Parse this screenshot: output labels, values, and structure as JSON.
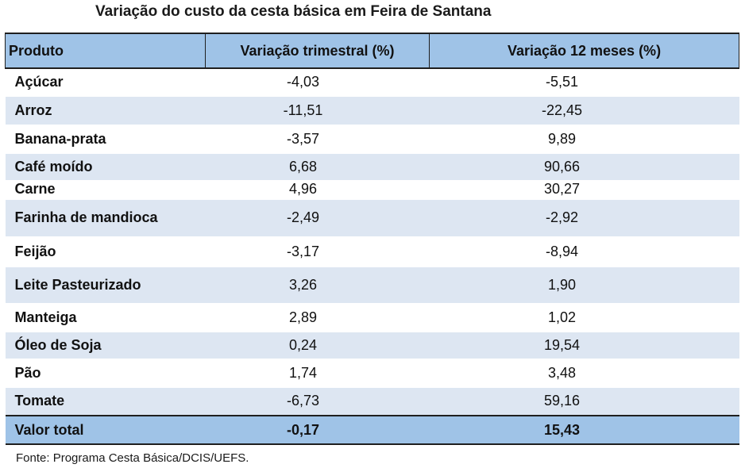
{
  "title": "Variação do custo da cesta básica em Feira de Santana",
  "header": {
    "col1": "Produto",
    "col2": "Variação trimestral (%)",
    "col3": "Variação 12 meses (%)"
  },
  "rows": [
    {
      "produto": "Açúcar",
      "trimestral": "-4,03",
      "doze_meses": "-5,51"
    },
    {
      "produto": "Arroz",
      "trimestral": "-11,51",
      "doze_meses": "-22,45"
    },
    {
      "produto": "Banana-prata",
      "trimestral": "-3,57",
      "doze_meses": "9,89"
    },
    {
      "produto": "Café moído",
      "trimestral": "6,68",
      "doze_meses": "90,66"
    },
    {
      "produto": "Carne",
      "trimestral": "4,96",
      "doze_meses": "30,27"
    },
    {
      "produto": "Farinha de mandioca",
      "trimestral": "-2,49",
      "doze_meses": "-2,92"
    },
    {
      "produto": "Feijão",
      "trimestral": "-3,17",
      "doze_meses": "-8,94"
    },
    {
      "produto": "Leite Pasteurizado",
      "trimestral": "3,26",
      "doze_meses": "1,90"
    },
    {
      "produto": "Manteiga",
      "trimestral": "2,89",
      "doze_meses": "1,02"
    },
    {
      "produto": "Óleo de Soja",
      "trimestral": "0,24",
      "doze_meses": "19,54"
    },
    {
      "produto": "Pão",
      "trimestral": "1,74",
      "doze_meses": "3,48"
    },
    {
      "produto": "Tomate",
      "trimestral": "-6,73",
      "doze_meses": "59,16"
    }
  ],
  "total": {
    "label": "Valor total",
    "trimestral": "-0,17",
    "doze_meses": "15,43"
  },
  "source": "Fonte: Programa Cesta Básica/DCIS/UEFS.",
  "colors": {
    "header_bg": "#9fc3e7",
    "band_bg": "#dde6f2"
  }
}
